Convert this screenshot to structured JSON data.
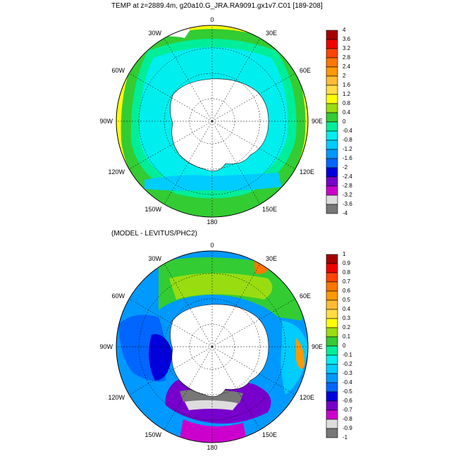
{
  "top_panel": {
    "title": "TEMP at z=2889.4m, g20a10.G_JRA.RA9091.gx1v7.C01 [189-208]",
    "meridian_labels": {
      "m0": "0",
      "m30e": "30E",
      "m60e": "60E",
      "m90e": "90E",
      "m120e": "120E",
      "m150e": "150E",
      "m180": "180",
      "m150w": "150W",
      "m120w": "120W",
      "m90w": "90W",
      "m60w": "60W",
      "m30w": "30W"
    },
    "colorbar": {
      "labels": [
        "4",
        "3.6",
        "3.2",
        "2.8",
        "2.4",
        "2",
        "1.6",
        "1.2",
        "0.8",
        "0.4",
        "0",
        "-0.4",
        "-0.8",
        "-1.2",
        "-1.6",
        "-2",
        "-2.4",
        "-2.8",
        "-3.2",
        "-3.6",
        "-4"
      ],
      "colors": [
        "#a50000",
        "#ee0000",
        "#ff4400",
        "#ff7700",
        "#ff9900",
        "#ffbb33",
        "#ffdd44",
        "#ffff00",
        "#99dd11",
        "#33cc33",
        "#00ee99",
        "#00eeee",
        "#00ccff",
        "#0099ff",
        "#0066ff",
        "#0000dd",
        "#7700cc",
        "#cc00cc",
        "#dddddd",
        "#777777"
      ]
    }
  },
  "bottom_panel": {
    "title": "(MODEL - LEVITUS/PHC2)",
    "meridian_labels": {
      "m0": "0",
      "m30e": "30E",
      "m60e": "60E",
      "m90e": "90E",
      "m120e": "120E",
      "m150e": "150E",
      "m180": "180",
      "m150w": "150W",
      "m120w": "120W",
      "m90w": "90W",
      "m60w": "60W",
      "m30w": "30W"
    },
    "colorbar": {
      "labels": [
        "1",
        "0.9",
        "0.8",
        "0.7",
        "0.6",
        "0.5",
        "0.4",
        "0.3",
        "0.2",
        "0.1",
        "0",
        "-0.1",
        "-0.2",
        "-0.3",
        "-0.4",
        "-0.5",
        "-0.6",
        "-0.7",
        "-0.8",
        "-0.9",
        "-1"
      ],
      "colors": [
        "#a50000",
        "#ee0000",
        "#ff4400",
        "#ff7700",
        "#ff9900",
        "#ffbb33",
        "#ffdd44",
        "#ffff00",
        "#99dd11",
        "#33cc33",
        "#00ee99",
        "#00eeee",
        "#00ccff",
        "#0099ff",
        "#0066ff",
        "#0000dd",
        "#7700cc",
        "#cc00cc",
        "#dddddd",
        "#777777"
      ]
    }
  }
}
